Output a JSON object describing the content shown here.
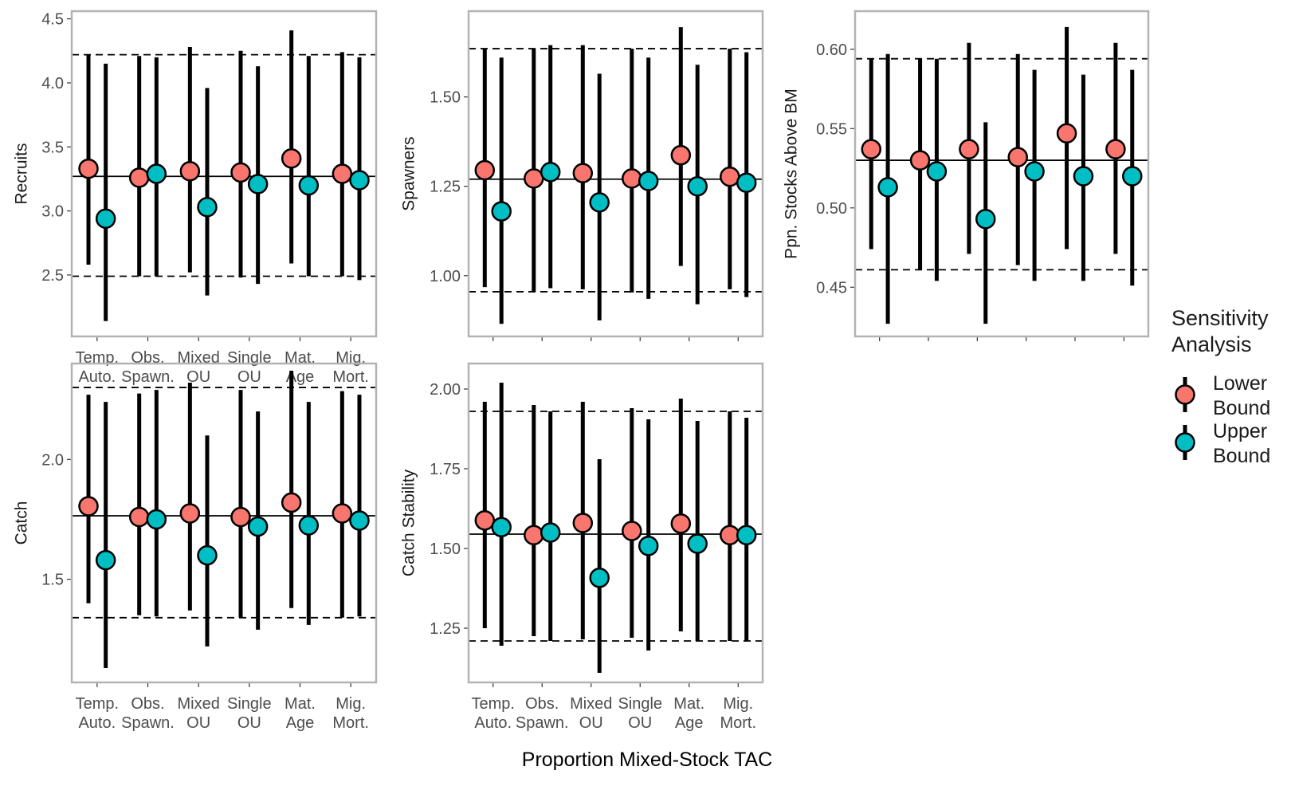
{
  "figure": {
    "x_title": "Proportion Mixed-Stock TAC",
    "legend": {
      "title_lines": [
        "Sensitivity",
        "Analysis"
      ],
      "entries": [
        {
          "label_lines": [
            "Lower",
            "Bound"
          ],
          "color": "#F8766D"
        },
        {
          "label_lines": [
            "Upper",
            "Bound"
          ],
          "color": "#00BFC4"
        }
      ],
      "placement": "right"
    },
    "colors": {
      "panel_border": "#b3b3b3",
      "lines": "#000000",
      "point_outline": "#000000",
      "tick_text": "#4d4d4d"
    }
  },
  "chart_data": [
    {
      "type": "scatter",
      "ylabel": "Recruits",
      "categories": [
        [
          "Temp.",
          "Auto."
        ],
        [
          "Obs.",
          "Spawn."
        ],
        [
          "Mixed",
          "OU"
        ],
        [
          "Single",
          "OU"
        ],
        [
          "Mat.",
          "Age"
        ],
        [
          "Mig.",
          "Mort."
        ]
      ],
      "show_x_labels": true,
      "ylim": [
        2.02,
        4.56
      ],
      "yticks": [
        2.5,
        3.0,
        3.5,
        4.0,
        4.5
      ],
      "ytick_labels": [
        "2.5",
        "3.0",
        "3.5",
        "4.0",
        "4.5"
      ],
      "reference": {
        "median": 3.27,
        "lower": 2.49,
        "upper": 4.22
      },
      "series": [
        {
          "name": "Lower Bound",
          "color": "#F8766D",
          "values": [
            3.33,
            3.26,
            3.31,
            3.3,
            3.41,
            3.29
          ],
          "lower": [
            2.58,
            2.49,
            2.52,
            2.48,
            2.59,
            2.49
          ],
          "upper": [
            4.22,
            4.21,
            4.28,
            4.25,
            4.41,
            4.24
          ]
        },
        {
          "name": "Upper Bound",
          "color": "#00BFC4",
          "values": [
            2.94,
            3.29,
            3.03,
            3.21,
            3.2,
            3.24
          ],
          "lower": [
            2.14,
            2.49,
            2.34,
            2.43,
            2.49,
            2.46
          ],
          "upper": [
            4.15,
            4.2,
            3.96,
            4.13,
            4.21,
            4.2
          ]
        }
      ]
    },
    {
      "type": "scatter",
      "ylabel": "Spawners",
      "categories": [
        [
          "Temp.",
          "Auto."
        ],
        [
          "Obs.",
          "Spawn."
        ],
        [
          "Mixed",
          "OU"
        ],
        [
          "Single",
          "OU"
        ],
        [
          "Mat.",
          "Age"
        ],
        [
          "Mig.",
          "Mort."
        ]
      ],
      "show_x_labels": false,
      "ylim": [
        0.83,
        1.74
      ],
      "yticks": [
        1.0,
        1.25,
        1.5
      ],
      "ytick_labels": [
        "1.00",
        "1.25",
        "1.50"
      ],
      "reference": {
        "median": 1.27,
        "lower": 0.955,
        "upper": 1.635
      },
      "series": [
        {
          "name": "Lower Bound",
          "color": "#F8766D",
          "values": [
            1.295,
            1.272,
            1.287,
            1.272,
            1.337,
            1.277
          ],
          "lower": [
            0.968,
            0.955,
            0.962,
            0.953,
            1.027,
            0.962
          ],
          "upper": [
            1.635,
            1.635,
            1.645,
            1.635,
            1.695,
            1.635
          ]
        },
        {
          "name": "Upper Bound",
          "color": "#00BFC4",
          "values": [
            1.18,
            1.29,
            1.205,
            1.265,
            1.25,
            1.26
          ],
          "lower": [
            0.865,
            0.965,
            0.875,
            0.935,
            0.92,
            0.94
          ],
          "upper": [
            1.61,
            1.645,
            1.565,
            1.61,
            1.59,
            1.625
          ]
        }
      ]
    },
    {
      "type": "scatter",
      "ylabel": "Ppn. Stocks Above BM",
      "categories": [
        [
          "Temp.",
          "Auto."
        ],
        [
          "Obs.",
          "Spawn."
        ],
        [
          "Mixed",
          "OU"
        ],
        [
          "Single",
          "OU"
        ],
        [
          "Mat.",
          "Age"
        ],
        [
          "Mig.",
          "Mort."
        ]
      ],
      "show_x_labels": false,
      "ylim": [
        0.419,
        0.624
      ],
      "yticks": [
        0.45,
        0.5,
        0.55,
        0.6
      ],
      "ytick_labels": [
        "0.45",
        "0.50",
        "0.55",
        "0.60"
      ],
      "reference": {
        "median": 0.53,
        "lower": 0.461,
        "upper": 0.594
      },
      "series": [
        {
          "name": "Lower Bound",
          "color": "#F8766D",
          "values": [
            0.537,
            0.53,
            0.537,
            0.532,
            0.547,
            0.537
          ],
          "lower": [
            0.474,
            0.461,
            0.471,
            0.464,
            0.474,
            0.471
          ],
          "upper": [
            0.594,
            0.594,
            0.604,
            0.597,
            0.614,
            0.604
          ]
        },
        {
          "name": "Upper Bound",
          "color": "#00BFC4",
          "values": [
            0.513,
            0.523,
            0.493,
            0.523,
            0.52,
            0.52
          ],
          "lower": [
            0.427,
            0.454,
            0.427,
            0.454,
            0.454,
            0.451
          ],
          "upper": [
            0.597,
            0.594,
            0.554,
            0.587,
            0.584,
            0.587
          ]
        }
      ]
    },
    {
      "type": "scatter",
      "ylabel": "Catch",
      "categories": [
        [
          "Temp.",
          "Auto."
        ],
        [
          "Obs.",
          "Spawn."
        ],
        [
          "Mixed",
          "OU"
        ],
        [
          "Single",
          "OU"
        ],
        [
          "Mat.",
          "Age"
        ],
        [
          "Mig.",
          "Mort."
        ]
      ],
      "show_x_labels": true,
      "ylim": [
        1.07,
        2.4
      ],
      "yticks": [
        1.5,
        2.0
      ],
      "ytick_labels": [
        "1.5",
        "2.0"
      ],
      "reference": {
        "median": 1.765,
        "lower": 1.34,
        "upper": 2.3
      },
      "series": [
        {
          "name": "Lower Bound",
          "color": "#F8766D",
          "values": [
            1.805,
            1.76,
            1.775,
            1.76,
            1.82,
            1.775
          ],
          "lower": [
            1.4,
            1.35,
            1.37,
            1.34,
            1.38,
            1.34
          ],
          "upper": [
            2.27,
            2.275,
            2.32,
            2.29,
            2.37,
            2.285
          ]
        },
        {
          "name": "Upper Bound",
          "color": "#00BFC4",
          "values": [
            1.58,
            1.75,
            1.6,
            1.72,
            1.725,
            1.745
          ],
          "lower": [
            1.13,
            1.345,
            1.22,
            1.29,
            1.31,
            1.345
          ],
          "upper": [
            2.24,
            2.29,
            2.1,
            2.2,
            2.24,
            2.27
          ]
        }
      ]
    },
    {
      "type": "scatter",
      "ylabel": "Catch Stability",
      "categories": [
        [
          "Temp.",
          "Auto."
        ],
        [
          "Obs.",
          "Spawn."
        ],
        [
          "Mixed",
          "OU"
        ],
        [
          "Single",
          "OU"
        ],
        [
          "Mat.",
          "Age"
        ],
        [
          "Mig.",
          "Mort."
        ]
      ],
      "show_x_labels": true,
      "ylim": [
        1.08,
        2.08
      ],
      "yticks": [
        1.25,
        1.5,
        1.75,
        2.0
      ],
      "ytick_labels": [
        "1.25",
        "1.50",
        "1.75",
        "2.00"
      ],
      "reference": {
        "median": 1.545,
        "lower": 1.21,
        "upper": 1.93
      },
      "series": [
        {
          "name": "Lower Bound",
          "color": "#F8766D",
          "values": [
            1.588,
            1.542,
            1.58,
            1.555,
            1.578,
            1.542
          ],
          "lower": [
            1.25,
            1.225,
            1.215,
            1.22,
            1.24,
            1.21
          ],
          "upper": [
            1.96,
            1.95,
            1.96,
            1.94,
            1.97,
            1.93
          ]
        },
        {
          "name": "Upper Bound",
          "color": "#00BFC4",
          "values": [
            1.567,
            1.55,
            1.408,
            1.508,
            1.515,
            1.542
          ],
          "lower": [
            1.195,
            1.21,
            1.11,
            1.18,
            1.21,
            1.21
          ],
          "upper": [
            2.02,
            1.93,
            1.78,
            1.905,
            1.9,
            1.91
          ]
        }
      ]
    }
  ]
}
